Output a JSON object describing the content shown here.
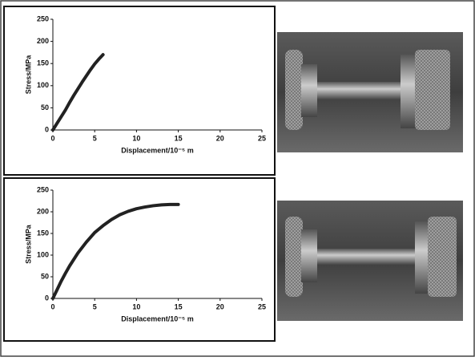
{
  "chart_data": [
    {
      "type": "line",
      "x_label": "Displacement/10⁻⁵ m",
      "y_label": "Stress/MPa",
      "series": [
        {
          "color": "#222222",
          "x": [
            0,
            0.5,
            1,
            1.5,
            2,
            2.5,
            3,
            3.5,
            4,
            4.5,
            5,
            5.5,
            6
          ],
          "values": [
            0,
            15,
            30,
            45,
            62,
            78,
            93,
            108,
            122,
            136,
            149,
            160,
            170
          ]
        }
      ],
      "xlim": [
        0,
        25
      ],
      "xticks": [
        0,
        5,
        10,
        15,
        20,
        25
      ],
      "ylim": [
        0,
        250
      ],
      "yticks": [
        0,
        50,
        100,
        150,
        200,
        250
      ]
    },
    {
      "type": "line",
      "x_label": "Displacement/10⁻⁵ m",
      "y_label": "Stress/MPa",
      "series": [
        {
          "color": "#222222",
          "x": [
            0,
            0.5,
            1,
            1.5,
            2,
            3,
            4,
            5,
            6,
            7,
            8,
            9,
            10,
            11,
            12,
            13,
            14,
            15
          ],
          "values": [
            0,
            20,
            40,
            58,
            75,
            105,
            130,
            152,
            168,
            182,
            193,
            201,
            207,
            211,
            214,
            216,
            217,
            217
          ]
        }
      ],
      "xlim": [
        0,
        25
      ],
      "xticks": [
        0,
        5,
        10,
        15,
        20,
        25
      ],
      "ylim": [
        0,
        250
      ],
      "yticks": [
        0,
        50,
        100,
        150,
        200,
        250
      ]
    }
  ]
}
